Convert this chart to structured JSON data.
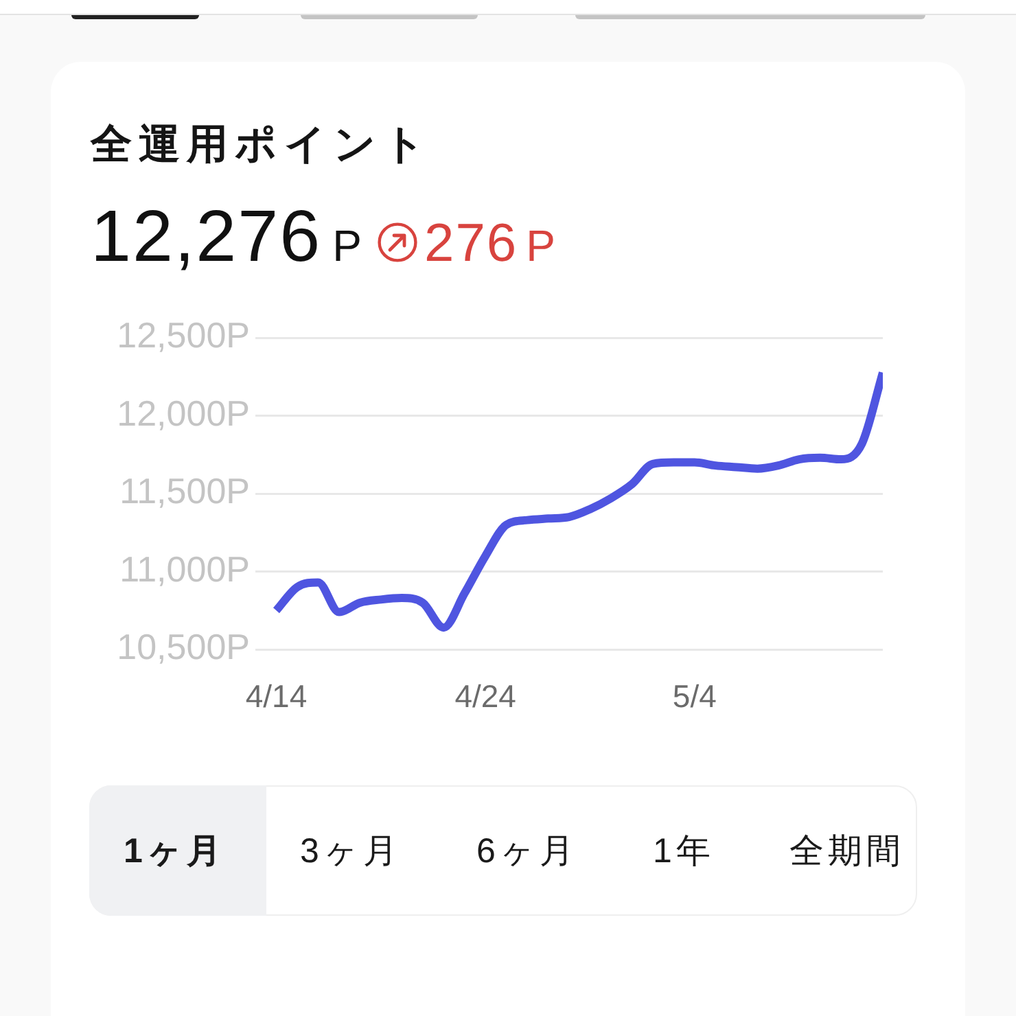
{
  "chart_data": {
    "type": "line",
    "title": "全運用ポイント",
    "subtitle": "12,276P",
    "annotations": [
      "276P",
      "1ヶ月",
      "3ヶ月",
      "6ヶ月",
      "1年",
      "全期間"
    ],
    "x": [
      "--04-14",
      "--04-15",
      "--04-16",
      "--04-17",
      "--04-18",
      "--04-19",
      "--04-20",
      "--04-21",
      "--04-22",
      "--04-23",
      "--04-24",
      "--04-25",
      "--04-26",
      "--04-27",
      "--04-28",
      "--04-29",
      "--04-30",
      "--05-01",
      "--05-02",
      "--05-03",
      "--05-04",
      "--05-05",
      "--05-06",
      "--05-07",
      "--05-08",
      "--05-09",
      "--05-10",
      "--05-11",
      "--05-12",
      "--05-13"
    ],
    "series": [
      {
        "color": "#4f55e0",
        "values": [
          10750,
          10900,
          10930,
          10740,
          10800,
          10820,
          10830,
          10800,
          10640,
          10860,
          11100,
          11300,
          11330,
          11340,
          11350,
          11400,
          11470,
          11560,
          11690,
          11700,
          11700,
          11680,
          11670,
          11660,
          11680,
          11720,
          11730,
          11720,
          11820,
          12276
        ]
      }
    ],
    "xlim": [
      "--04-13",
      "--05-13"
    ],
    "xticks": [
      {
        "value": "--04-14",
        "label": "4/14"
      },
      {
        "value": "--04-24",
        "label": "4/24"
      },
      {
        "value": "--05-04",
        "label": "5/4"
      }
    ],
    "ylim": [
      10500,
      12500
    ],
    "yticks": [
      {
        "value": 10500,
        "label": "10,500P"
      },
      {
        "value": 11000,
        "label": "11,000P"
      },
      {
        "value": 11500,
        "label": "11,500P"
      },
      {
        "value": 12000,
        "label": "12,000P"
      },
      {
        "value": 12500,
        "label": "12,500P"
      }
    ],
    "grid": "y",
    "legend": false,
    "marker": "none"
  }
}
